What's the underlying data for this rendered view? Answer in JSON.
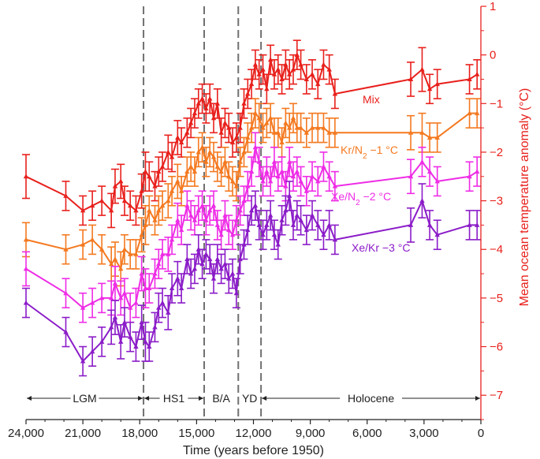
{
  "chart_data": {
    "type": "line",
    "xlabel": "Time (years before 1950)",
    "ylabel": "Mean ocean temperature anomaly (°C)",
    "xlim": [
      24000,
      0
    ],
    "ylim": [
      -7.5,
      1
    ],
    "x_ticks": [
      24000,
      21000,
      18000,
      15000,
      12000,
      9000,
      6000,
      3000,
      0
    ],
    "x_tick_labels": [
      "24,000",
      "21,000",
      "18,000",
      "15,000",
      "12,000",
      "9,000",
      "6,000",
      "3,000",
      "0"
    ],
    "y_ticks": [
      1,
      0,
      -1,
      -2,
      -3,
      -4,
      -5,
      -6,
      -7
    ],
    "y_tick_labels": [
      "1",
      "0",
      "−1",
      "−2",
      "−3",
      "−4",
      "−5",
      "−6",
      "−7"
    ],
    "y_axis_side": "right",
    "grid": false,
    "boundaries": [
      17800,
      14600,
      12800,
      11600
    ],
    "periods": [
      {
        "label": "LGM",
        "start": 24000,
        "end": 17800
      },
      {
        "label": "HS1",
        "start": 17800,
        "end": 14600
      },
      {
        "label": "B/A",
        "start": 14600,
        "end": 12800
      },
      {
        "label": "YD",
        "start": 12800,
        "end": 11600
      },
      {
        "label": "Holocene",
        "start": 11600,
        "end": 0
      }
    ],
    "series": [
      {
        "name": "Mix",
        "label_parts": [
          [
            "Mix",
            "n"
          ]
        ],
        "color": "#e8201c",
        "x": [
          24000,
          21900,
          21000,
          20500,
          20000,
          19500,
          19300,
          19000,
          18800,
          18500,
          18200,
          17900,
          17700,
          17500,
          17200,
          17000,
          16800,
          16500,
          16300,
          16000,
          15800,
          15500,
          15300,
          15100,
          14900,
          14700,
          14500,
          14300,
          14100,
          13900,
          13700,
          13500,
          13300,
          13100,
          12900,
          12700,
          12500,
          12300,
          12100,
          11900,
          11700,
          11500,
          11300,
          11100,
          10900,
          10700,
          10500,
          10300,
          10100,
          9900,
          9700,
          9500,
          9200,
          8900,
          8600,
          8300,
          8000,
          7700,
          3700,
          3100,
          2700,
          2300,
          600,
          200
        ],
        "y": [
          -2.5,
          -2.9,
          -3.2,
          -3.1,
          -3.0,
          -3.2,
          -2.7,
          -2.6,
          -3.0,
          -3.1,
          -3.2,
          -2.8,
          -2.4,
          -2.5,
          -2.7,
          -2.4,
          -2.3,
          -2.0,
          -2.1,
          -1.7,
          -1.8,
          -1.6,
          -1.4,
          -1.2,
          -1.0,
          -0.9,
          -1.1,
          -0.9,
          -1.3,
          -1.0,
          -1.6,
          -1.4,
          -1.5,
          -1.8,
          -1.7,
          -1.5,
          -1.0,
          -0.8,
          -0.6,
          -0.2,
          -0.4,
          -0.3,
          -0.7,
          -0.1,
          -0.4,
          -0.3,
          -0.5,
          -0.2,
          -0.4,
          -0.3,
          0.0,
          -0.2,
          -0.5,
          -0.4,
          -0.6,
          -0.2,
          -0.3,
          -0.8,
          -0.5,
          -0.3,
          -0.7,
          -0.6,
          -0.5,
          -0.4
        ],
        "err": [
          0.45,
          0.3,
          0.3,
          0.3,
          0.3,
          0.35,
          0.35,
          0.35,
          0.3,
          0.3,
          0.3,
          0.35,
          0.4,
          0.3,
          0.3,
          0.3,
          0.3,
          0.35,
          0.3,
          0.35,
          0.3,
          0.3,
          0.3,
          0.3,
          0.3,
          0.3,
          0.3,
          0.3,
          0.3,
          0.3,
          0.3,
          0.3,
          0.3,
          0.3,
          0.3,
          0.3,
          0.3,
          0.3,
          0.3,
          0.3,
          0.3,
          0.3,
          0.3,
          0.3,
          0.3,
          0.3,
          0.3,
          0.3,
          0.3,
          0.3,
          0.3,
          0.3,
          0.3,
          0.3,
          0.3,
          0.3,
          0.3,
          0.3,
          0.35,
          0.45,
          0.3,
          0.3,
          0.3,
          0.3
        ]
      },
      {
        "name": "Kr/N2 −1 °C",
        "label_parts": [
          [
            "Kr/N",
            "n"
          ],
          [
            "2",
            "sub"
          ],
          [
            " −1 °C",
            "n"
          ]
        ],
        "color": "#f47920",
        "x": [
          24000,
          21900,
          21000,
          20500,
          20000,
          19500,
          19300,
          19000,
          18800,
          18500,
          18200,
          17900,
          17700,
          17500,
          17200,
          17000,
          16800,
          16500,
          16300,
          16000,
          15800,
          15500,
          15300,
          15100,
          14900,
          14700,
          14500,
          14300,
          14100,
          13900,
          13700,
          13500,
          13300,
          13100,
          12900,
          12700,
          12500,
          12300,
          12100,
          11900,
          11700,
          11500,
          11300,
          11100,
          10900,
          10700,
          10500,
          10300,
          10100,
          9900,
          9700,
          9500,
          9200,
          8900,
          8600,
          8300,
          8000,
          7700,
          3700,
          3100,
          2700,
          2300,
          600,
          200
        ],
        "y": [
          -3.8,
          -4.0,
          -3.9,
          -3.8,
          -4.0,
          -4.3,
          -4.2,
          -4.4,
          -4.0,
          -4.1,
          -4.1,
          -3.7,
          -3.5,
          -3.2,
          -3.4,
          -3.2,
          -3.1,
          -3.0,
          -2.8,
          -2.6,
          -2.8,
          -2.4,
          -2.3,
          -2.4,
          -2.0,
          -1.9,
          -2.2,
          -2.0,
          -2.1,
          -2.3,
          -2.4,
          -2.2,
          -2.5,
          -2.6,
          -2.7,
          -2.2,
          -2.0,
          -1.7,
          -1.5,
          -1.2,
          -1.3,
          -1.5,
          -1.4,
          -1.3,
          -1.6,
          -1.6,
          -1.8,
          -1.4,
          -1.5,
          -1.3,
          -1.5,
          -1.5,
          -1.6,
          -1.5,
          -1.5,
          -1.5,
          -1.6,
          -1.6,
          -1.6,
          -1.6,
          -1.7,
          -1.7,
          -1.2,
          -1.2
        ],
        "err": [
          0.35,
          0.3,
          0.3,
          0.3,
          0.3,
          0.35,
          0.35,
          0.35,
          0.3,
          0.3,
          0.3,
          0.35,
          0.4,
          0.3,
          0.3,
          0.3,
          0.3,
          0.35,
          0.3,
          0.35,
          0.3,
          0.3,
          0.3,
          0.3,
          0.3,
          0.3,
          0.3,
          0.3,
          0.3,
          0.3,
          0.3,
          0.3,
          0.3,
          0.3,
          0.3,
          0.3,
          0.3,
          0.3,
          0.3,
          0.3,
          0.3,
          0.3,
          0.3,
          0.3,
          0.3,
          0.3,
          0.3,
          0.3,
          0.3,
          0.3,
          0.3,
          0.3,
          0.3,
          0.3,
          0.3,
          0.3,
          0.3,
          0.3,
          0.35,
          0.4,
          0.3,
          0.3,
          0.3,
          0.3
        ]
      },
      {
        "name": "Xe/N2 −2 °C",
        "label_parts": [
          [
            "Xe/N",
            "n"
          ],
          [
            "2",
            "sub"
          ],
          [
            " −2 °C",
            "n"
          ]
        ],
        "color": "#ee2ce6",
        "x": [
          24000,
          21900,
          21000,
          20500,
          20000,
          19500,
          19300,
          19000,
          18800,
          18500,
          18200,
          17900,
          17700,
          17500,
          17200,
          17000,
          16800,
          16500,
          16300,
          16000,
          15800,
          15500,
          15300,
          15100,
          14900,
          14700,
          14500,
          14300,
          14100,
          13900,
          13700,
          13500,
          13300,
          13100,
          12900,
          12700,
          12500,
          12300,
          12100,
          11900,
          11700,
          11500,
          11300,
          11100,
          10900,
          10700,
          10500,
          10300,
          10100,
          9900,
          9700,
          9500,
          9200,
          8900,
          8600,
          8300,
          8000,
          7700,
          3700,
          3100,
          2700,
          2300,
          600,
          200
        ],
        "y": [
          -4.4,
          -4.9,
          -5.2,
          -5.1,
          -5.0,
          -5.0,
          -4.7,
          -5.0,
          -4.9,
          -5.2,
          -5.1,
          -4.5,
          -4.8,
          -4.8,
          -4.5,
          -4.3,
          -4.1,
          -4.1,
          -3.8,
          -3.4,
          -3.6,
          -3.1,
          -3.3,
          -3.4,
          -3.2,
          -3.1,
          -3.4,
          -3.2,
          -3.1,
          -3.5,
          -3.7,
          -3.3,
          -3.6,
          -3.7,
          -3.4,
          -3.2,
          -3.0,
          -2.7,
          -2.4,
          -1.9,
          -2.2,
          -2.6,
          -2.4,
          -2.6,
          -2.2,
          -2.5,
          -2.4,
          -2.7,
          -2.2,
          -2.5,
          -2.4,
          -2.6,
          -2.8,
          -2.5,
          -2.6,
          -2.3,
          -2.5,
          -2.7,
          -2.5,
          -2.2,
          -2.4,
          -2.6,
          -2.5,
          -2.4
        ],
        "err": [
          0.35,
          0.3,
          0.3,
          0.3,
          0.3,
          0.35,
          0.35,
          0.35,
          0.3,
          0.3,
          0.3,
          0.35,
          0.4,
          0.3,
          0.3,
          0.3,
          0.3,
          0.35,
          0.3,
          0.35,
          0.3,
          0.3,
          0.3,
          0.3,
          0.3,
          0.3,
          0.3,
          0.3,
          0.3,
          0.3,
          0.3,
          0.3,
          0.3,
          0.3,
          0.3,
          0.3,
          0.3,
          0.3,
          0.3,
          0.3,
          0.3,
          0.3,
          0.3,
          0.3,
          0.3,
          0.3,
          0.3,
          0.3,
          0.3,
          0.3,
          0.3,
          0.3,
          0.3,
          0.3,
          0.3,
          0.3,
          0.3,
          0.3,
          0.35,
          0.3,
          0.3,
          0.3,
          0.3,
          0.3
        ]
      },
      {
        "name": "Xe/Kr −3 °C",
        "label_parts": [
          [
            "Xe/Kr −3 °C",
            "n"
          ]
        ],
        "color": "#8b1cc8",
        "x": [
          24000,
          21900,
          21000,
          20500,
          20000,
          19500,
          19300,
          19000,
          18800,
          18500,
          18200,
          17900,
          17700,
          17500,
          17200,
          17000,
          16800,
          16500,
          16300,
          16000,
          15800,
          15500,
          15300,
          15100,
          14900,
          14700,
          14500,
          14300,
          14100,
          13900,
          13700,
          13500,
          13300,
          13100,
          12900,
          12700,
          12500,
          12300,
          12100,
          11900,
          11700,
          11500,
          11300,
          11100,
          10900,
          10700,
          10500,
          10300,
          10100,
          9900,
          9700,
          9500,
          9200,
          8900,
          8600,
          8300,
          8000,
          7700,
          3700,
          3100,
          2700,
          2300,
          600,
          200
        ],
        "y": [
          -5.1,
          -5.7,
          -6.3,
          -6.1,
          -5.9,
          -5.6,
          -5.4,
          -5.9,
          -5.5,
          -5.8,
          -6.0,
          -5.5,
          -5.9,
          -6.0,
          -5.6,
          -5.2,
          -5.1,
          -5.3,
          -4.8,
          -4.6,
          -4.8,
          -4.2,
          -4.5,
          -4.4,
          -4.0,
          -4.3,
          -4.1,
          -4.2,
          -4.6,
          -4.2,
          -4.4,
          -4.3,
          -4.6,
          -4.5,
          -4.9,
          -4.2,
          -3.9,
          -3.6,
          -3.2,
          -3.1,
          -3.5,
          -3.7,
          -3.5,
          -3.3,
          -3.7,
          -3.9,
          -3.4,
          -3.2,
          -2.9,
          -3.5,
          -3.3,
          -3.4,
          -3.6,
          -3.3,
          -3.5,
          -3.7,
          -3.5,
          -3.8,
          -3.5,
          -3.0,
          -3.5,
          -3.7,
          -3.5,
          -3.5
        ],
        "err": [
          0.3,
          0.3,
          0.3,
          0.3,
          0.3,
          0.35,
          0.35,
          0.35,
          0.3,
          0.3,
          0.3,
          0.35,
          0.4,
          0.3,
          0.3,
          0.3,
          0.3,
          0.35,
          0.3,
          0.35,
          0.3,
          0.3,
          0.3,
          0.3,
          0.3,
          0.3,
          0.3,
          0.3,
          0.3,
          0.3,
          0.3,
          0.3,
          0.3,
          0.3,
          0.3,
          0.3,
          0.3,
          0.3,
          0.3,
          0.3,
          0.3,
          0.3,
          0.3,
          0.3,
          0.3,
          0.3,
          0.3,
          0.3,
          0.3,
          0.3,
          0.3,
          0.3,
          0.3,
          0.3,
          0.3,
          0.3,
          0.3,
          0.3,
          0.35,
          0.35,
          0.3,
          0.3,
          0.3,
          0.3
        ]
      }
    ]
  }
}
